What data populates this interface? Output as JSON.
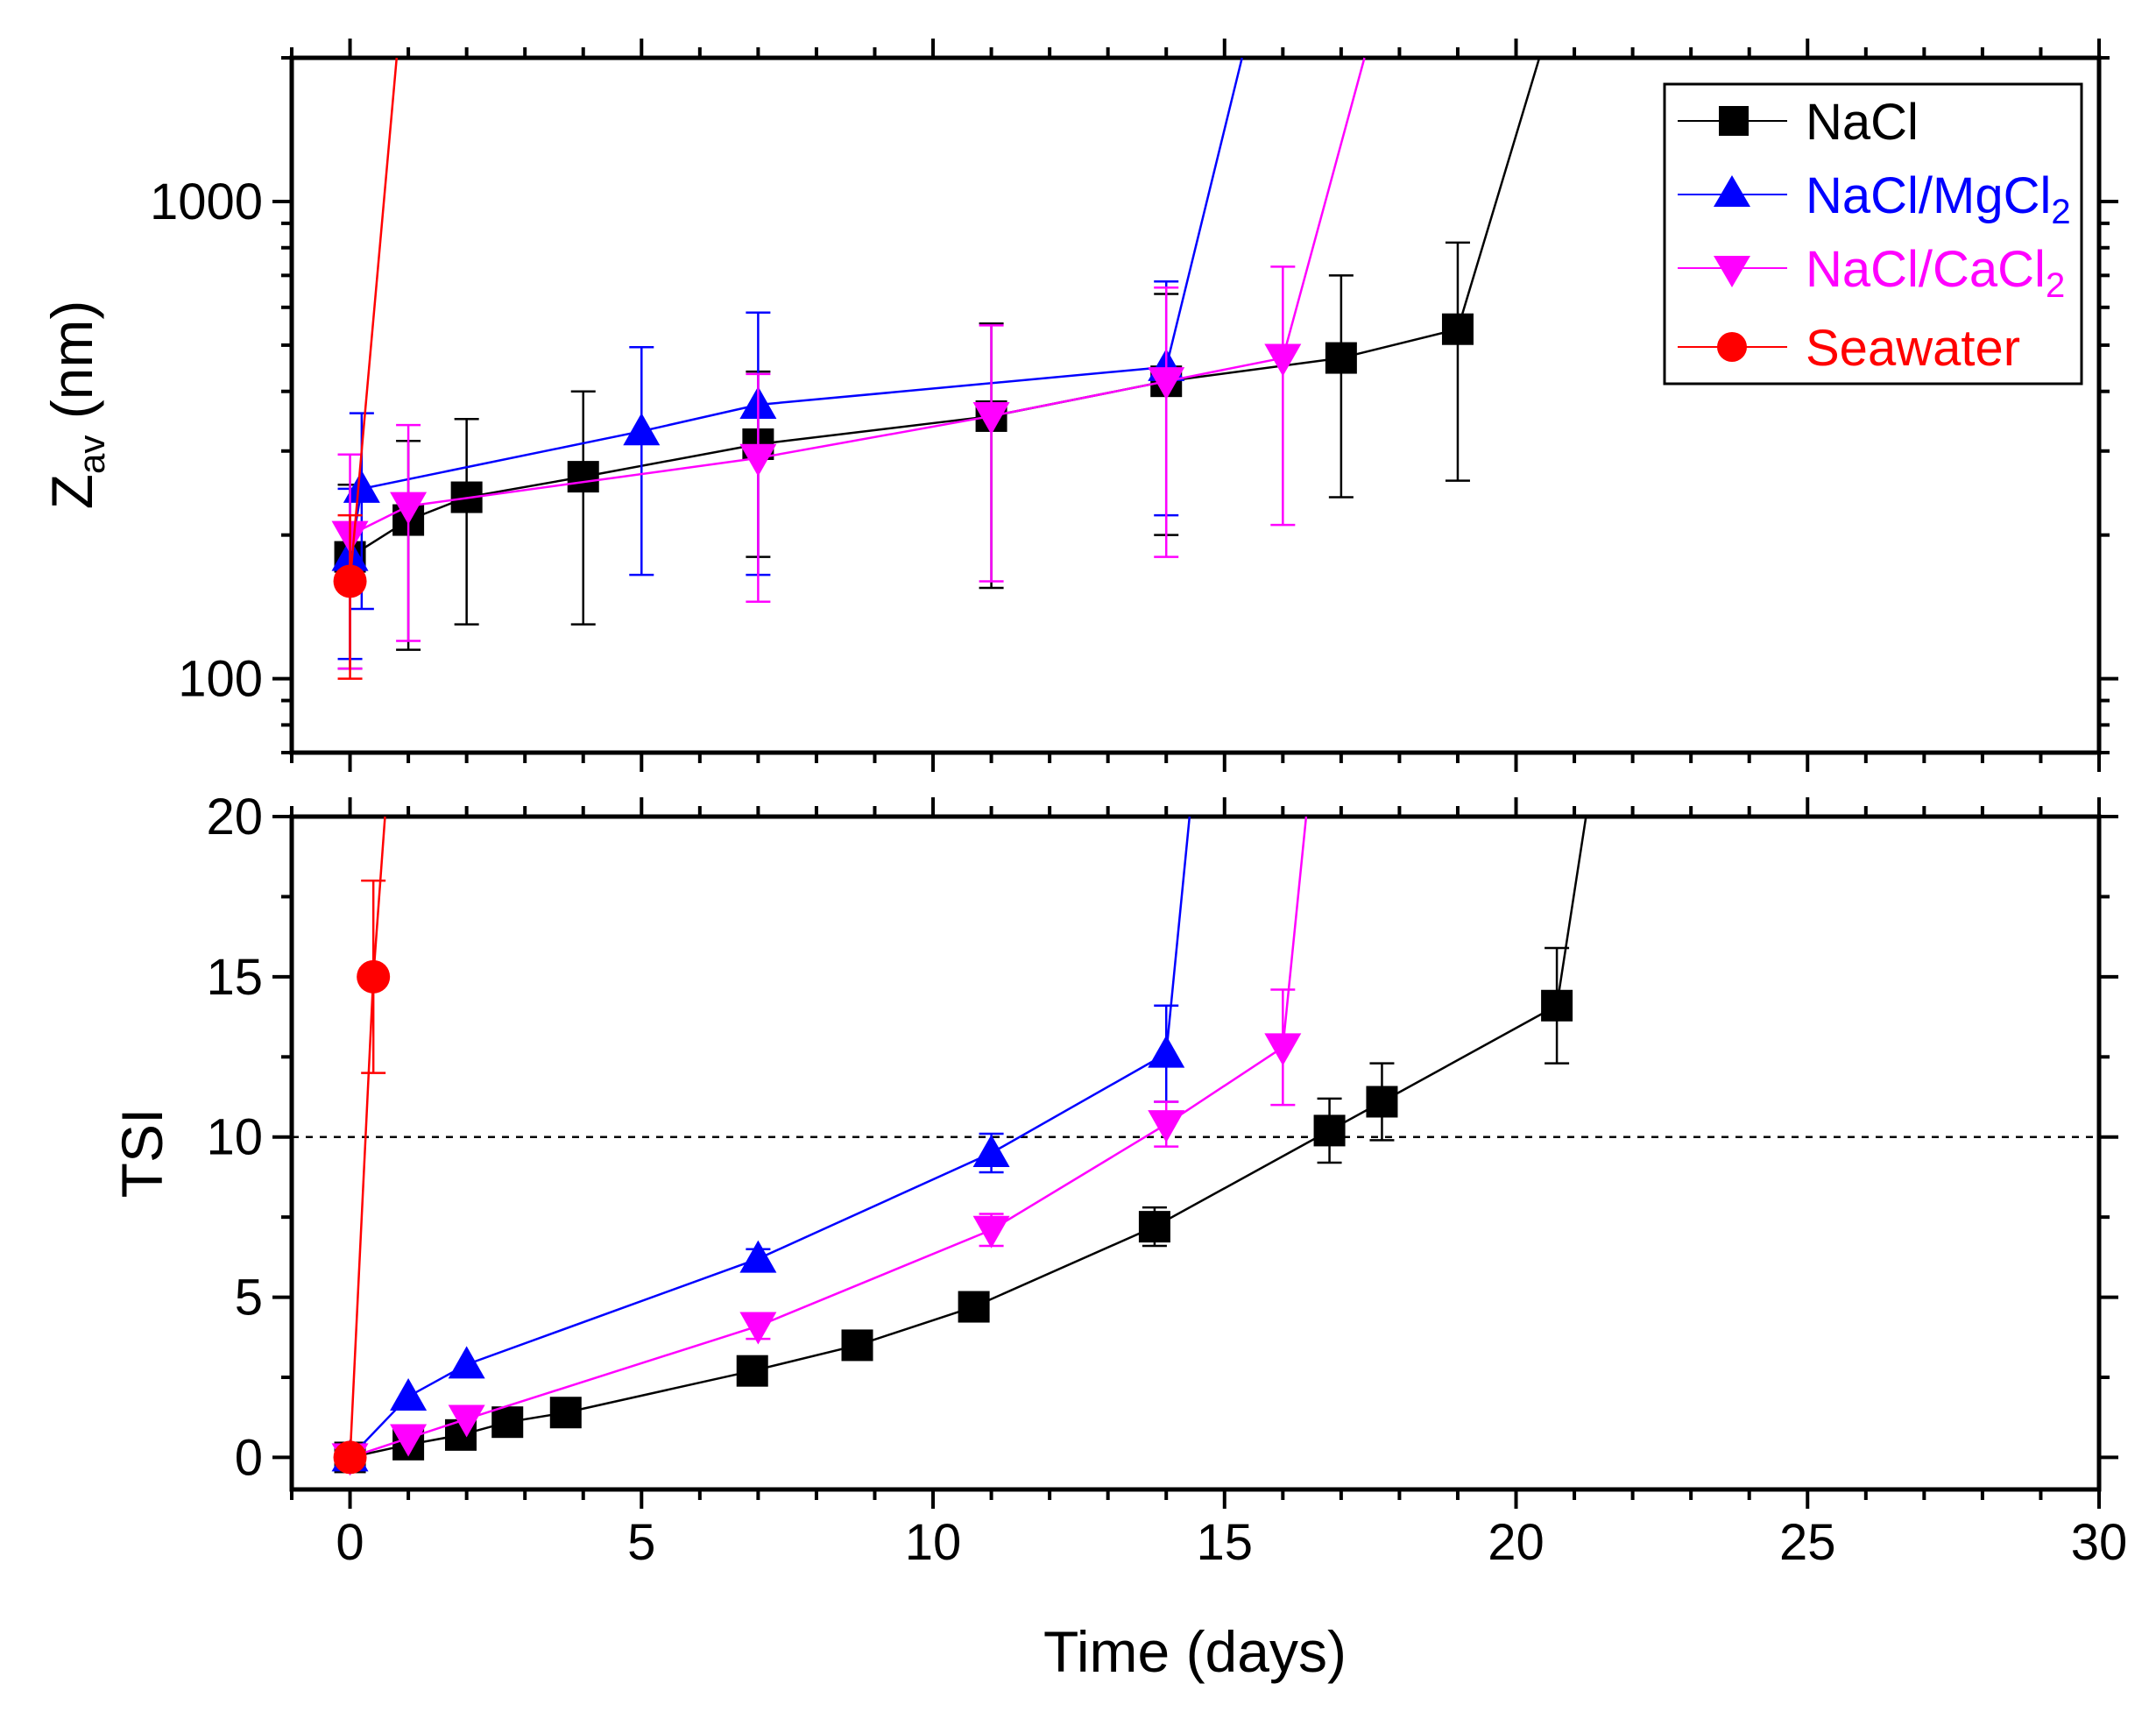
{
  "chart_data": [
    {
      "type": "line",
      "panel": "top",
      "yscale": "log",
      "ylabel_main": "Z",
      "ylabel_sub": "av",
      "ylabel_unit": " (nm)",
      "xlim": [
        -1,
        30
      ],
      "ylim": [
        70,
        2000
      ],
      "yticks": [
        100,
        1000
      ],
      "ytick_labels": [
        "100",
        "1000"
      ],
      "series": [
        {
          "name": "NaCl",
          "color": "#000000",
          "marker": "square",
          "points": [
            {
              "x": 0,
              "y": 180,
              "err": 75
            },
            {
              "x": 1,
              "y": 215,
              "err": 100
            },
            {
              "x": 2,
              "y": 240,
              "err": 110
            },
            {
              "x": 4,
              "y": 265,
              "err": 135
            },
            {
              "x": 7,
              "y": 310,
              "err": 130
            },
            {
              "x": 11,
              "y": 355,
              "err": 200
            },
            {
              "x": 14,
              "y": 420,
              "err": 220
            },
            {
              "x": 17,
              "y": 470,
              "err": 230
            },
            {
              "x": 19,
              "y": 540,
              "err": 280
            }
          ],
          "extension": [
            {
              "x": 19,
              "y": 540
            },
            {
              "x": 20.4,
              "y": 2000
            }
          ]
        },
        {
          "name": "NaCl/MgCl2",
          "label_main": "NaCl/MgCl",
          "label_sub": "2",
          "color": "#0000ff",
          "marker": "triangle-up",
          "points": [
            {
              "x": 0,
              "y": 180,
              "err": 70
            },
            {
              "x": 0.2,
              "y": 250,
              "err": 110
            },
            {
              "x": 5,
              "y": 330,
              "err": 165
            },
            {
              "x": 7,
              "y": 375,
              "err": 210
            },
            {
              "x": 14,
              "y": 450,
              "err": 230
            }
          ],
          "extension": [
            {
              "x": 14,
              "y": 450
            },
            {
              "x": 15.3,
              "y": 2000
            }
          ]
        },
        {
          "name": "NaCl/CaCl2",
          "label_main": "NaCl/CaCl",
          "label_sub": "2",
          "color": "#ff00ff",
          "marker": "triangle-down",
          "points": [
            {
              "x": 0,
              "y": 200,
              "err": 95
            },
            {
              "x": 1,
              "y": 230,
              "err": 110
            },
            {
              "x": 7,
              "y": 290,
              "err": 145
            },
            {
              "x": 11,
              "y": 355,
              "err": 195
            },
            {
              "x": 14,
              "y": 420,
              "err": 240
            },
            {
              "x": 16,
              "y": 470,
              "err": 260
            }
          ],
          "extension": [
            {
              "x": 16,
              "y": 470
            },
            {
              "x": 17.4,
              "y": 2000
            }
          ]
        },
        {
          "name": "Seawater",
          "color": "#ff0000",
          "marker": "circle",
          "points": [
            {
              "x": 0,
              "y": 160,
              "err": 60
            }
          ],
          "extension": [
            {
              "x": 0,
              "y": 160
            },
            {
              "x": 0.8,
              "y": 2000
            }
          ]
        }
      ],
      "legend": {
        "position": "top-right",
        "entries": [
          "NaCl",
          "NaCl/MgCl2",
          "NaCl/CaCl2",
          "Seawater"
        ]
      }
    },
    {
      "type": "line",
      "panel": "bottom",
      "yscale": "linear",
      "ylabel": "TSI",
      "xlabel": "Time (days)",
      "xlim": [
        -1,
        30
      ],
      "ylim": [
        -1,
        20
      ],
      "xticks": [
        0,
        5,
        10,
        15,
        20,
        25,
        30
      ],
      "yticks": [
        0,
        5,
        10,
        15,
        20
      ],
      "reference_line": {
        "y": 10,
        "style": "dashed"
      },
      "series": [
        {
          "name": "NaCl",
          "color": "#000000",
          "marker": "square",
          "points": [
            {
              "x": 0,
              "y": 0,
              "err": 0
            },
            {
              "x": 1,
              "y": 0.4,
              "err": 0
            },
            {
              "x": 1.9,
              "y": 0.7,
              "err": 0
            },
            {
              "x": 2.7,
              "y": 1.1,
              "err": 0
            },
            {
              "x": 3.7,
              "y": 1.4,
              "err": 0
            },
            {
              "x": 6.9,
              "y": 2.7,
              "err": 0
            },
            {
              "x": 8.7,
              "y": 3.5,
              "err": 0
            },
            {
              "x": 10.7,
              "y": 4.7,
              "err": 0
            },
            {
              "x": 13.8,
              "y": 7.2,
              "err": 0.6
            },
            {
              "x": 16.8,
              "y": 10.2,
              "err": 1.0
            },
            {
              "x": 17.7,
              "y": 11.1,
              "err": 1.2
            },
            {
              "x": 20.7,
              "y": 14.1,
              "err": 1.8
            }
          ],
          "extension": [
            {
              "x": 20.7,
              "y": 14.1
            },
            {
              "x": 21.2,
              "y": 20
            }
          ]
        },
        {
          "name": "NaCl/MgCl2",
          "color": "#0000ff",
          "marker": "triangle-up",
          "points": [
            {
              "x": 0,
              "y": 0,
              "err": 0
            },
            {
              "x": 1,
              "y": 1.9,
              "err": 0
            },
            {
              "x": 2,
              "y": 2.9,
              "err": 0
            },
            {
              "x": 7,
              "y": 6.2,
              "err": 0.3
            },
            {
              "x": 11,
              "y": 9.5,
              "err": 0.6
            },
            {
              "x": 14,
              "y": 12.6,
              "err": 1.5
            }
          ],
          "extension": [
            {
              "x": 14,
              "y": 12.6
            },
            {
              "x": 14.4,
              "y": 20
            }
          ]
        },
        {
          "name": "NaCl/CaCl2",
          "color": "#ff00ff",
          "marker": "triangle-down",
          "points": [
            {
              "x": 0,
              "y": 0,
              "err": 0
            },
            {
              "x": 1,
              "y": 0.6,
              "err": 0
            },
            {
              "x": 2,
              "y": 1.2,
              "err": 0
            },
            {
              "x": 7,
              "y": 4.1,
              "err": 0.4
            },
            {
              "x": 11,
              "y": 7.1,
              "err": 0.5
            },
            {
              "x": 14,
              "y": 10.4,
              "err": 0.7
            },
            {
              "x": 16,
              "y": 12.8,
              "err": 1.8
            }
          ],
          "extension": [
            {
              "x": 16,
              "y": 12.8
            },
            {
              "x": 16.4,
              "y": 20
            }
          ]
        },
        {
          "name": "Seawater",
          "color": "#ff0000",
          "marker": "circle",
          "points": [
            {
              "x": 0,
              "y": 0,
              "err": 0
            },
            {
              "x": 0.4,
              "y": 15,
              "err": 3
            }
          ],
          "extension": [
            {
              "x": 0.4,
              "y": 15
            },
            {
              "x": 0.6,
              "y": 20
            }
          ]
        }
      ]
    }
  ]
}
